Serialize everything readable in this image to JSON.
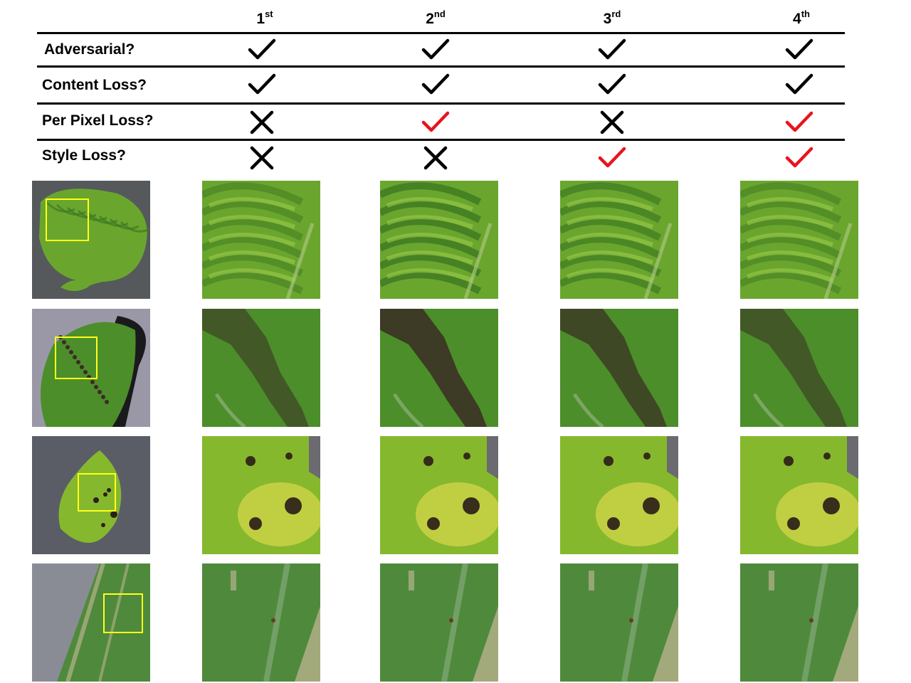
{
  "columns": [
    {
      "num": "1",
      "suffix": "st"
    },
    {
      "num": "2",
      "suffix": "nd"
    },
    {
      "num": "3",
      "suffix": "rd"
    },
    {
      "num": "4",
      "suffix": "th"
    }
  ],
  "rows": [
    {
      "label": "Adversarial?",
      "marks": [
        "check",
        "check",
        "check",
        "check"
      ]
    },
    {
      "label": "Content Loss?",
      "marks": [
        "check",
        "check",
        "check",
        "check"
      ]
    },
    {
      "label": "Per Pixel Loss?",
      "marks": [
        "cross",
        "check",
        "cross",
        "check"
      ]
    },
    {
      "label": "Style Loss?",
      "marks": [
        "cross",
        "cross",
        "check",
        "check"
      ]
    }
  ],
  "mark_colors": [
    [
      "#000000",
      "#000000",
      "#000000",
      "#000000"
    ],
    [
      "#000000",
      "#000000",
      "#000000",
      "#000000"
    ],
    [
      "#000000",
      "#e8141c",
      "#000000",
      "#e8141c"
    ],
    [
      "#000000",
      "#000000",
      "#e8141c",
      "#e8141c"
    ]
  ],
  "icons": {
    "check": "check-mark-icon",
    "cross": "cross-mark-icon"
  },
  "colors": {
    "zoom_box": "#ffff1a",
    "check_red": "#e8141c",
    "text": "#000000"
  },
  "image_rows": [
    {
      "leaf": "tomato-leaf",
      "base": "#6aa62e",
      "dark": "#3f7a22",
      "light": "#9ccc4a",
      "bg": "#55595b",
      "spots": "none"
    },
    {
      "leaf": "apple-leaf",
      "base": "#4c8e2a",
      "dark": "#3b2b24",
      "light": "#6fae3a",
      "bg": "#9a98a6",
      "spots": "streak"
    },
    {
      "leaf": "pepper-leaf",
      "base": "#86b82e",
      "dark": "#2e1f18",
      "light": "#d8d84a",
      "bg": "#5a5d66",
      "spots": "dots"
    },
    {
      "leaf": "corn-leaf",
      "base": "#4f8a3c",
      "dark": "#6a3a26",
      "light": "#b7b28c",
      "bg": "#8a8c95",
      "spots": "stripes"
    }
  ]
}
